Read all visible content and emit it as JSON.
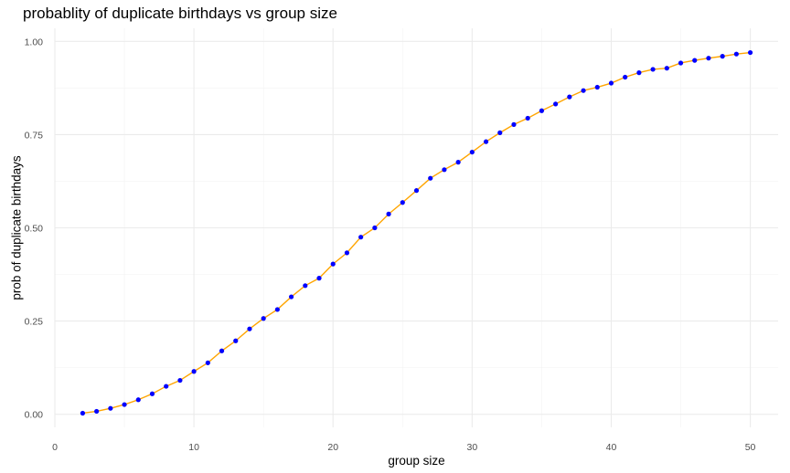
{
  "chart_data": {
    "type": "line",
    "title": "probablity of duplicate birthdays vs group size",
    "xlabel": "group size",
    "ylabel": "prob of duplicate birthdays",
    "xlim": [
      0,
      52
    ],
    "ylim": [
      0,
      1
    ],
    "x_ticks": [
      0,
      10,
      20,
      30,
      40,
      50
    ],
    "y_ticks": [
      0.0,
      0.25,
      0.5,
      0.75,
      1.0
    ],
    "x_tick_labels": [
      "0",
      "10",
      "20",
      "30",
      "40",
      "50"
    ],
    "y_tick_labels": [
      "0.00",
      "0.25",
      "0.50",
      "0.75",
      "1.00"
    ],
    "grid": true,
    "line_color": "#ffa500",
    "point_color": "#0000ff",
    "series": [
      {
        "x": [
          2,
          3,
          4,
          5,
          6,
          7,
          8,
          9,
          10,
          11,
          12,
          13,
          14,
          15,
          16,
          17,
          18,
          19,
          20,
          21,
          22,
          23,
          24,
          25,
          26,
          27,
          28,
          29,
          30,
          31,
          32,
          33,
          34,
          35,
          36,
          37,
          38,
          39,
          40,
          41,
          42,
          43,
          44,
          45,
          46,
          47,
          48,
          49,
          50
        ],
        "y": [
          0.003,
          0.008,
          0.016,
          0.026,
          0.039,
          0.055,
          0.075,
          0.091,
          0.115,
          0.138,
          0.17,
          0.197,
          0.229,
          0.257,
          0.281,
          0.315,
          0.345,
          0.365,
          0.403,
          0.433,
          0.475,
          0.5,
          0.537,
          0.568,
          0.6,
          0.633,
          0.656,
          0.676,
          0.703,
          0.731,
          0.755,
          0.777,
          0.794,
          0.814,
          0.832,
          0.851,
          0.868,
          0.877,
          0.888,
          0.904,
          0.916,
          0.925,
          0.928,
          0.942,
          0.949,
          0.955,
          0.96,
          0.966,
          0.97
        ]
      }
    ]
  }
}
